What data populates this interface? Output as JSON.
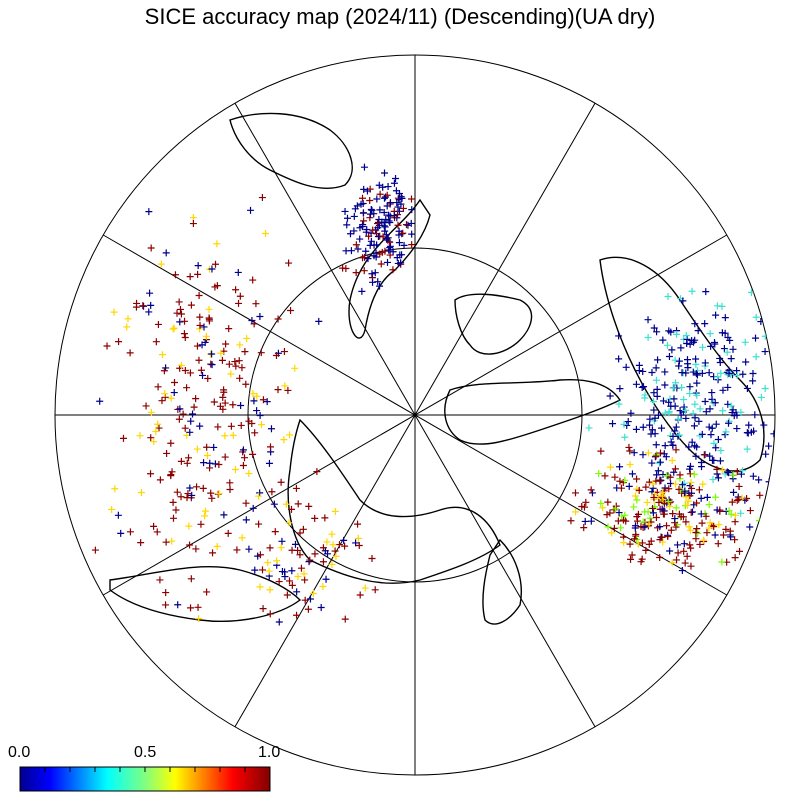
{
  "title": "SICE accuracy map (2024/11) (Descending)(UA dry)",
  "colorbar": {
    "min_label": "0.0",
    "mid_label": "0.5",
    "max_label": "1.0",
    "colors": [
      "#00008f",
      "#0000ff",
      "#0080ff",
      "#00ffff",
      "#80ff80",
      "#ffff00",
      "#ff8000",
      "#ff0000",
      "#800000"
    ]
  },
  "map": {
    "projection": "north-polar-stereographic",
    "marker": "plus",
    "cluster_colors": {
      "high": "#8b0000",
      "mid": "#ffd700",
      "low": "#00008b",
      "cyan": "#40e0d0",
      "green": "#7cfc00"
    }
  }
}
